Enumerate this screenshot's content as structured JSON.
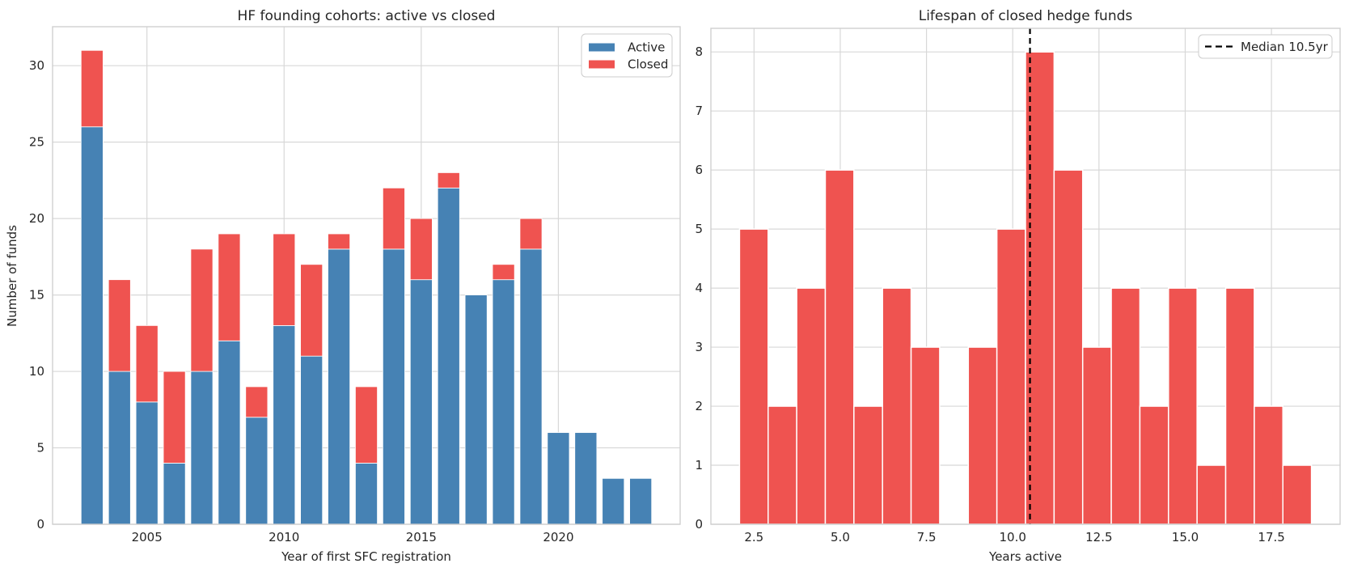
{
  "style": {
    "background": "#ffffff",
    "grid_color": "#d8d8d8",
    "spine_color": "#cfcfcf",
    "text_color": "#262626",
    "active_color": "#4682b4",
    "closed_color": "#ef5350",
    "median_line_color": "#000000"
  },
  "chart_data": [
    {
      "type": "bar",
      "stacked": true,
      "title": "HF founding cohorts: active vs closed",
      "xlabel": "Year of first SFC registration",
      "ylabel": "Number of funds",
      "categories": [
        2003,
        2004,
        2005,
        2006,
        2007,
        2008,
        2009,
        2010,
        2011,
        2012,
        2013,
        2014,
        2015,
        2016,
        2017,
        2018,
        2019,
        2020,
        2021,
        2022,
        2023
      ],
      "series": [
        {
          "name": "Active",
          "color": "#4682b4",
          "values": [
            26,
            10,
            8,
            4,
            10,
            12,
            7,
            13,
            11,
            18,
            4,
            18,
            16,
            22,
            15,
            16,
            18,
            6,
            6,
            3,
            3
          ]
        },
        {
          "name": "Closed",
          "color": "#ef5350",
          "values": [
            5,
            6,
            5,
            6,
            8,
            7,
            2,
            6,
            6,
            1,
            5,
            4,
            4,
            1,
            0,
            1,
            2,
            0,
            0,
            0,
            0
          ]
        }
      ],
      "bar_width": 0.8,
      "xticks": [
        2005,
        2010,
        2015,
        2020
      ],
      "yticks": [
        0,
        5,
        10,
        15,
        20,
        25,
        30
      ],
      "xlim": [
        2001.56,
        2024.44
      ],
      "ylim": [
        0,
        32.55
      ],
      "grid": true,
      "legend": {
        "position": "upper right",
        "entries": [
          "Active",
          "Closed"
        ]
      }
    },
    {
      "type": "histogram",
      "title": "Lifespan of closed hedge funds",
      "xlabel": "Years active",
      "ylabel": "",
      "bin_start": 2.08,
      "bin_width": 0.829,
      "counts": [
        5,
        2,
        4,
        6,
        2,
        4,
        3,
        0,
        3,
        5,
        8,
        6,
        3,
        4,
        2,
        4,
        1,
        4,
        2,
        1
      ],
      "color": "#ef5350",
      "xticks": [
        2.5,
        5.0,
        7.5,
        10.0,
        12.5,
        15.0,
        17.5
      ],
      "xtick_decimals": 1,
      "yticks": [
        0,
        1,
        2,
        3,
        4,
        5,
        6,
        7,
        8
      ],
      "xlim": [
        1.25,
        19.49
      ],
      "ylim": [
        0,
        8.4
      ],
      "grid": true,
      "median_line": {
        "x": 10.5,
        "label": "Median 10.5yr",
        "color": "#000000",
        "style": "dashed"
      },
      "legend": {
        "position": "upper right",
        "entries": [
          "Median 10.5yr"
        ]
      }
    }
  ]
}
